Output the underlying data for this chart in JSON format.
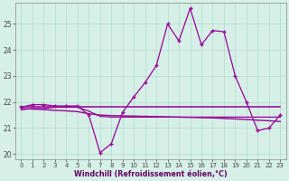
{
  "xlabel": "Windchill (Refroidissement éolien,°C)",
  "bg_color": "#d6f0e8",
  "line_color": "#990099",
  "grid_color": "#b8ddd0",
  "hours": [
    0,
    1,
    2,
    3,
    4,
    5,
    6,
    7,
    8,
    9,
    10,
    11,
    12,
    13,
    14,
    15,
    16,
    17,
    18,
    19,
    20,
    21,
    22,
    23
  ],
  "s_main": [
    21.8,
    21.9,
    21.9,
    21.85,
    21.85,
    21.85,
    21.5,
    20.05,
    20.4,
    21.6,
    22.2,
    22.75,
    23.4,
    25.0,
    24.35,
    25.6,
    24.2,
    24.75,
    24.7,
    23.0,
    22.0,
    20.9,
    21.0,
    21.5
  ],
  "s_flat": [
    21.8,
    21.8,
    21.8,
    21.8,
    21.8,
    21.8,
    21.8,
    21.8,
    21.8,
    21.8,
    21.8,
    21.8,
    21.8,
    21.8,
    21.8,
    21.8,
    21.8,
    21.8,
    21.8,
    21.8,
    21.8,
    21.8,
    21.8,
    21.8
  ],
  "s_decline": [
    21.75,
    21.73,
    21.71,
    21.68,
    21.66,
    21.63,
    21.55,
    21.5,
    21.48,
    21.47,
    21.46,
    21.45,
    21.44,
    21.43,
    21.42,
    21.41,
    21.4,
    21.39,
    21.37,
    21.35,
    21.33,
    21.3,
    21.28,
    21.25
  ],
  "s_dip": [
    21.7,
    21.75,
    21.75,
    21.8,
    21.8,
    21.8,
    21.65,
    21.45,
    21.42,
    21.42,
    21.42,
    21.42,
    21.42,
    21.42,
    21.42,
    21.42,
    21.42,
    21.42,
    21.42,
    21.42,
    21.42,
    21.42,
    21.42,
    21.42
  ],
  "ylim": [
    19.8,
    25.8
  ],
  "yticks": [
    20,
    21,
    22,
    23,
    24,
    25
  ],
  "xticks": [
    0,
    1,
    2,
    3,
    4,
    5,
    6,
    7,
    8,
    9,
    10,
    11,
    12,
    13,
    14,
    15,
    16,
    17,
    18,
    19,
    20,
    21,
    22,
    23
  ]
}
